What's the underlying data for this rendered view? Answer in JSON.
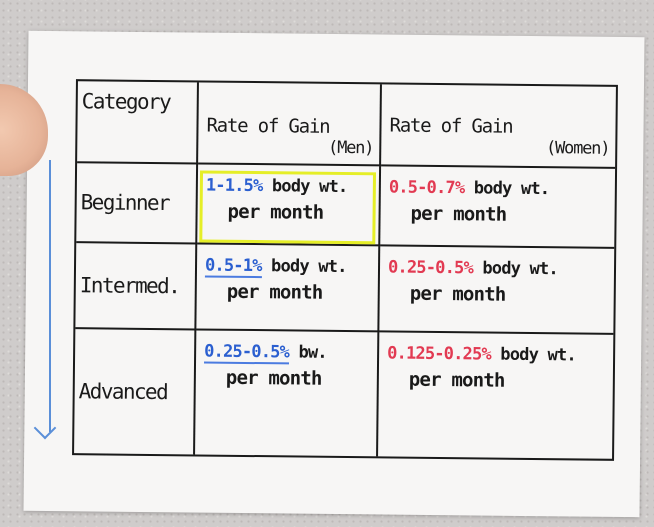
{
  "table": {
    "headers": {
      "category": "Category",
      "men_line1": "Rate of Gain",
      "men_line2": "(Men)",
      "women_line1": "Rate of Gain",
      "women_line2": "(Women)"
    },
    "rows": [
      {
        "category": "Beginner",
        "men_rate": "1-1.5%",
        "men_unit": "body wt.",
        "men_pm": "per month",
        "women_rate": "0.5-0.7%",
        "women_unit": "body wt.",
        "women_pm": "per month"
      },
      {
        "category": "Intermed.",
        "men_rate": "0.5-1%",
        "men_unit": "body wt.",
        "men_pm": "per month",
        "women_rate": "0.25-0.5%",
        "women_unit": "body wt.",
        "women_pm": "per month"
      },
      {
        "category": "Advanced",
        "men_rate": "0.25-0.5%",
        "men_unit": "bw.",
        "men_pm": "per month",
        "women_rate": "0.125-0.25%",
        "women_unit": "body wt.",
        "women_pm": "per month"
      }
    ]
  },
  "colors": {
    "men_ink": "#2b5fd0",
    "women_ink": "#e23a52",
    "highlight": "#e5ee27",
    "arrow": "#5b8fd8"
  }
}
